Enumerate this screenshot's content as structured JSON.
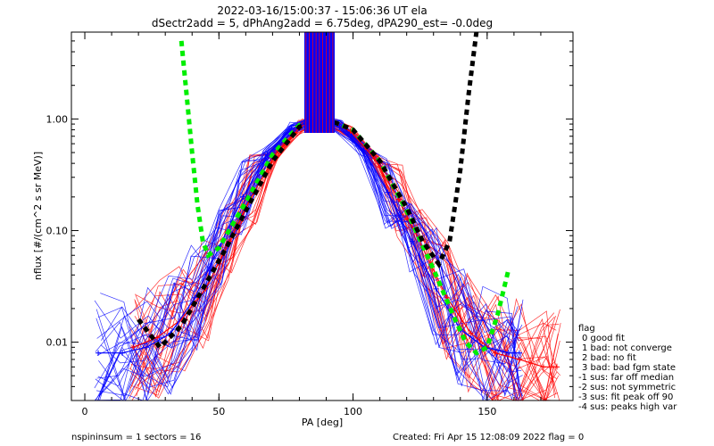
{
  "chart_data": {
    "type": "line",
    "title": "2022-03-16/15:00:37 - 15:06:36 UT ela",
    "subtitle": "dSectr2add = 5, dPhAng2add = 6.75deg, dPA290_est=  -0.0deg",
    "xlabel": "PA [deg]",
    "ylabel": "nflux [#/(cm^2 s sr MeV)]",
    "xlim": [
      -5,
      182
    ],
    "ylim": [
      0.003,
      6.0
    ],
    "yscale": "log",
    "x_ticks": [
      {
        "value": 0,
        "label": "0"
      },
      {
        "value": 50,
        "label": "50"
      },
      {
        "value": 100,
        "label": "100"
      },
      {
        "value": 150,
        "label": "150"
      }
    ],
    "y_ticks": [
      {
        "value": 0.01,
        "label": "0.01"
      },
      {
        "value": 0.1,
        "label": "0.10"
      },
      {
        "value": 1.0,
        "label": "1.00"
      }
    ],
    "series": [
      {
        "color": "#ff0000",
        "marker": "+",
        "style": "thin",
        "x": [
          18,
          27,
          36,
          45,
          54,
          63,
          72,
          81,
          90,
          99,
          108,
          117,
          126,
          135,
          144,
          153,
          162,
          171,
          176
        ],
        "y": [
          0.009,
          0.011,
          0.016,
          0.03,
          0.08,
          0.22,
          0.52,
          0.88,
          0.97,
          0.78,
          0.44,
          0.19,
          0.07,
          0.025,
          0.012,
          0.008,
          0.007,
          0.006,
          0.006
        ]
      },
      {
        "color": "#0000ff",
        "marker": "+",
        "style": "thin",
        "x": [
          5,
          14,
          23,
          32,
          41,
          50,
          59,
          68,
          77,
          86,
          95,
          104,
          113,
          122,
          131,
          140,
          149,
          158,
          162
        ],
        "y": [
          0.008,
          0.008,
          0.009,
          0.012,
          0.025,
          0.07,
          0.2,
          0.48,
          0.82,
          0.98,
          0.85,
          0.52,
          0.22,
          0.08,
          0.03,
          0.013,
          0.009,
          0.008,
          0.008
        ]
      },
      {
        "color": "#00ee00",
        "style": "dashed",
        "x": [
          36,
          38,
          40,
          42,
          44,
          46,
          50,
          60,
          70,
          80,
          90,
          100,
          110,
          120,
          130,
          138,
          142,
          146,
          150,
          154,
          158
        ],
        "y": [
          5.0,
          1.6,
          0.5,
          0.17,
          0.08,
          0.06,
          0.07,
          0.18,
          0.48,
          0.88,
          1.0,
          0.8,
          0.42,
          0.15,
          0.045,
          0.016,
          0.01,
          0.008,
          0.009,
          0.018,
          0.045
        ]
      },
      {
        "color": "#000000",
        "style": "dashed",
        "x": [
          20,
          28,
          36,
          44,
          52,
          60,
          70,
          80,
          90,
          100,
          110,
          120,
          126,
          132,
          136,
          140,
          143,
          146
        ],
        "y": [
          0.016,
          0.009,
          0.014,
          0.03,
          0.065,
          0.15,
          0.42,
          0.85,
          1.0,
          0.8,
          0.42,
          0.16,
          0.08,
          0.05,
          0.08,
          0.35,
          1.6,
          6.0
        ]
      }
    ],
    "spikes": {
      "color": "#0000ff",
      "x_range": [
        82,
        93
      ],
      "y_top": 6.0
    },
    "legend": {
      "placement": "right",
      "title": "flag",
      "items": [
        "0 good fit",
        "1 bad: not converge",
        "2 bad: no fit",
        "3 bad: bad fgm state",
        "-1 sus: far off median",
        "-2 sus: not symmetric",
        "-3 sus: fit peak off 90",
        "-4 sus: peaks high var"
      ]
    },
    "footer": {
      "left": "nspininsum =  1  sectors = 16",
      "right": "Created: Fri Apr 15 12:08:09 2022   flag = 0"
    }
  }
}
